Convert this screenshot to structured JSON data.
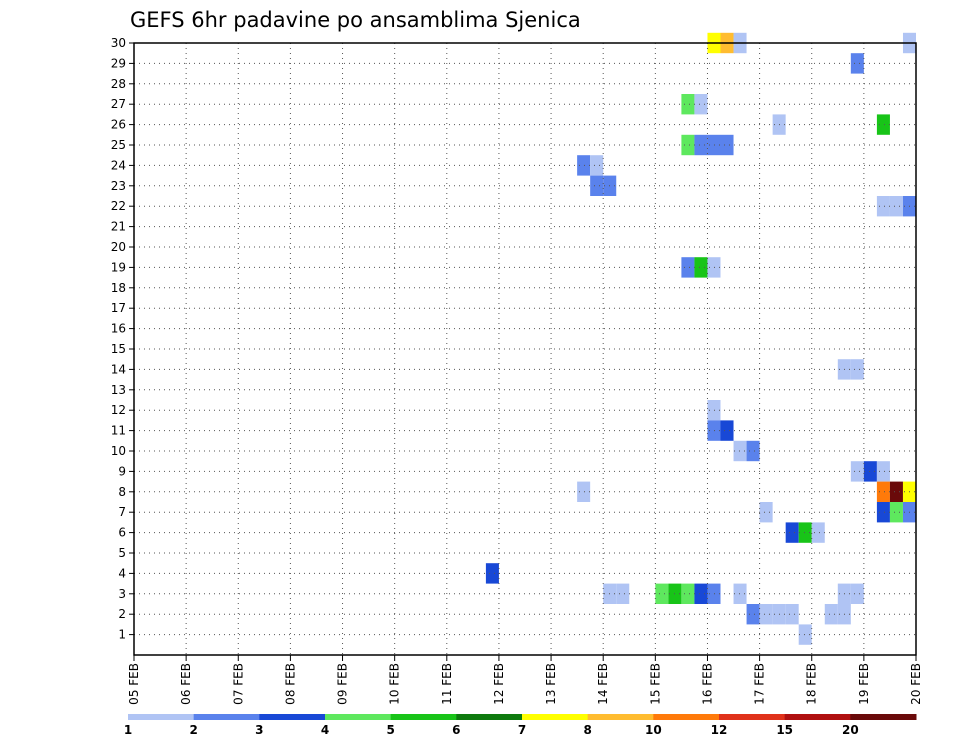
{
  "chart_data": {
    "type": "heatmap",
    "title": "GEFS 6hr padavine po ansamblima Sjenica",
    "x_tick_labels": [
      "05 FEB",
      "06 FEB",
      "07 FEB",
      "08 FEB",
      "09 FEB",
      "10 FEB",
      "11 FEB",
      "12 FEB",
      "13 FEB",
      "14 FEB",
      "15 FEB",
      "16 FEB",
      "17 FEB",
      "18 FEB",
      "19 FEB",
      "20 FEB"
    ],
    "y_tick_labels": [
      "1",
      "2",
      "3",
      "4",
      "5",
      "6",
      "7",
      "8",
      "9",
      "10",
      "11",
      "12",
      "13",
      "14",
      "15",
      "16",
      "17",
      "18",
      "19",
      "20",
      "21",
      "22",
      "23",
      "24",
      "25",
      "26",
      "27",
      "28",
      "29",
      "30"
    ],
    "xlim_days": [
      5,
      20
    ],
    "ylim": [
      0,
      30
    ],
    "step_hours": 6,
    "grid": true,
    "colorbar": {
      "tick_labels": [
        "1",
        "2",
        "3",
        "4",
        "5",
        "6",
        "7",
        "8",
        "10",
        "12",
        "15",
        "20"
      ],
      "colors": [
        "#b0c4f4",
        "#5a82ec",
        "#1848d6",
        "#5ee85e",
        "#18c418",
        "#0e7a0e",
        "#ffff00",
        "#ffbc30",
        "#ff7a0a",
        "#e0321a",
        "#b01010",
        "#6a0a0a"
      ]
    },
    "cells": [
      {
        "member": 30,
        "day": 16,
        "hour": 0,
        "cls": 7
      },
      {
        "member": 30,
        "day": 16,
        "hour": 6,
        "cls": 8
      },
      {
        "member": 30,
        "day": 16,
        "hour": 12,
        "cls": 1
      },
      {
        "member": 30,
        "day": 19,
        "hour": 18,
        "cls": 1
      },
      {
        "member": 29,
        "day": 18,
        "hour": 18,
        "cls": 2
      },
      {
        "member": 27,
        "day": 15,
        "hour": 12,
        "cls": 4
      },
      {
        "member": 27,
        "day": 15,
        "hour": 18,
        "cls": 1
      },
      {
        "member": 26,
        "day": 17,
        "hour": 6,
        "cls": 1
      },
      {
        "member": 26,
        "day": 19,
        "hour": 6,
        "cls": 5
      },
      {
        "member": 25,
        "day": 15,
        "hour": 12,
        "cls": 4
      },
      {
        "member": 25,
        "day": 15,
        "hour": 18,
        "cls": 2
      },
      {
        "member": 25,
        "day": 16,
        "hour": 0,
        "cls": 2
      },
      {
        "member": 25,
        "day": 16,
        "hour": 6,
        "cls": 2
      },
      {
        "member": 24,
        "day": 13,
        "hour": 12,
        "cls": 2
      },
      {
        "member": 24,
        "day": 13,
        "hour": 18,
        "cls": 1
      },
      {
        "member": 23,
        "day": 13,
        "hour": 18,
        "cls": 2
      },
      {
        "member": 23,
        "day": 14,
        "hour": 0,
        "cls": 2
      },
      {
        "member": 22,
        "day": 19,
        "hour": 6,
        "cls": 1
      },
      {
        "member": 22,
        "day": 19,
        "hour": 12,
        "cls": 1
      },
      {
        "member": 22,
        "day": 19,
        "hour": 18,
        "cls": 2
      },
      {
        "member": 19,
        "day": 15,
        "hour": 12,
        "cls": 2
      },
      {
        "member": 19,
        "day": 15,
        "hour": 18,
        "cls": 5
      },
      {
        "member": 19,
        "day": 16,
        "hour": 0,
        "cls": 1
      },
      {
        "member": 14,
        "day": 18,
        "hour": 12,
        "cls": 1
      },
      {
        "member": 14,
        "day": 18,
        "hour": 18,
        "cls": 1
      },
      {
        "member": 12,
        "day": 16,
        "hour": 0,
        "cls": 1
      },
      {
        "member": 11,
        "day": 16,
        "hour": 0,
        "cls": 2
      },
      {
        "member": 11,
        "day": 16,
        "hour": 6,
        "cls": 3
      },
      {
        "member": 10,
        "day": 16,
        "hour": 12,
        "cls": 1
      },
      {
        "member": 10,
        "day": 16,
        "hour": 18,
        "cls": 2
      },
      {
        "member": 9,
        "day": 18,
        "hour": 18,
        "cls": 1
      },
      {
        "member": 9,
        "day": 19,
        "hour": 0,
        "cls": 3
      },
      {
        "member": 9,
        "day": 19,
        "hour": 6,
        "cls": 1
      },
      {
        "member": 8,
        "day": 13,
        "hour": 12,
        "cls": 1
      },
      {
        "member": 8,
        "day": 19,
        "hour": 6,
        "cls": 9
      },
      {
        "member": 8,
        "day": 19,
        "hour": 12,
        "cls": 12
      },
      {
        "member": 8,
        "day": 19,
        "hour": 18,
        "cls": 7
      },
      {
        "member": 7,
        "day": 17,
        "hour": 0,
        "cls": 1
      },
      {
        "member": 7,
        "day": 19,
        "hour": 6,
        "cls": 3
      },
      {
        "member": 7,
        "day": 19,
        "hour": 12,
        "cls": 4
      },
      {
        "member": 7,
        "day": 19,
        "hour": 18,
        "cls": 2
      },
      {
        "member": 6,
        "day": 17,
        "hour": 12,
        "cls": 3
      },
      {
        "member": 6,
        "day": 17,
        "hour": 18,
        "cls": 5
      },
      {
        "member": 6,
        "day": 18,
        "hour": 0,
        "cls": 1
      },
      {
        "member": 4,
        "day": 11,
        "hour": 18,
        "cls": 3
      },
      {
        "member": 3,
        "day": 14,
        "hour": 0,
        "cls": 1
      },
      {
        "member": 3,
        "day": 14,
        "hour": 6,
        "cls": 1
      },
      {
        "member": 3,
        "day": 15,
        "hour": 0,
        "cls": 4
      },
      {
        "member": 3,
        "day": 15,
        "hour": 6,
        "cls": 5
      },
      {
        "member": 3,
        "day": 15,
        "hour": 12,
        "cls": 4
      },
      {
        "member": 3,
        "day": 15,
        "hour": 18,
        "cls": 3
      },
      {
        "member": 3,
        "day": 16,
        "hour": 0,
        "cls": 2
      },
      {
        "member": 3,
        "day": 16,
        "hour": 12,
        "cls": 1
      },
      {
        "member": 3,
        "day": 18,
        "hour": 12,
        "cls": 1
      },
      {
        "member": 3,
        "day": 18,
        "hour": 18,
        "cls": 1
      },
      {
        "member": 2,
        "day": 16,
        "hour": 18,
        "cls": 2
      },
      {
        "member": 2,
        "day": 17,
        "hour": 0,
        "cls": 1
      },
      {
        "member": 2,
        "day": 17,
        "hour": 6,
        "cls": 1
      },
      {
        "member": 2,
        "day": 17,
        "hour": 12,
        "cls": 1
      },
      {
        "member": 2,
        "day": 18,
        "hour": 6,
        "cls": 1
      },
      {
        "member": 2,
        "day": 18,
        "hour": 12,
        "cls": 1
      },
      {
        "member": 1,
        "day": 17,
        "hour": 18,
        "cls": 1
      }
    ]
  }
}
